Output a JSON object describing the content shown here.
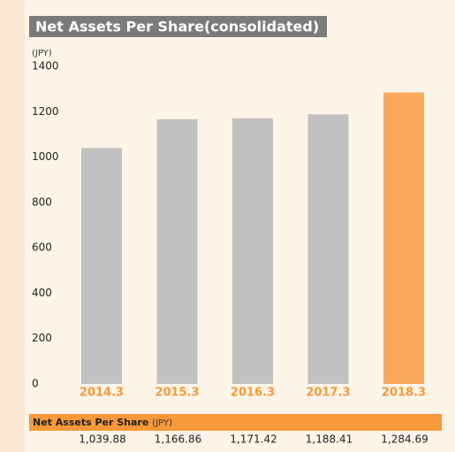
{
  "chart_data": {
    "type": "bar",
    "title": "Net Assets Per Share(consolidated)",
    "y_unit": "(JPY)",
    "categories": [
      "2014.3",
      "2015.3",
      "2016.3",
      "2017.3",
      "2018.3"
    ],
    "values": [
      1039.88,
      1166.86,
      1171.42,
      1188.41,
      1284.69
    ],
    "value_labels": [
      "1,039.88",
      "1,166.86",
      "1,171.42",
      "1,188.41",
      "1,284.69"
    ],
    "colors": [
      "#c1c1c1",
      "#c1c1c1",
      "#c1c1c1",
      "#c1c1c1",
      "#f9a95c"
    ],
    "ylim": [
      0,
      1400
    ],
    "yticks": [
      0,
      200,
      400,
      600,
      800,
      1000,
      1200,
      1400
    ],
    "grid": false,
    "table_label": "Net Assets Per Share",
    "table_unit": "(JPY)"
  }
}
